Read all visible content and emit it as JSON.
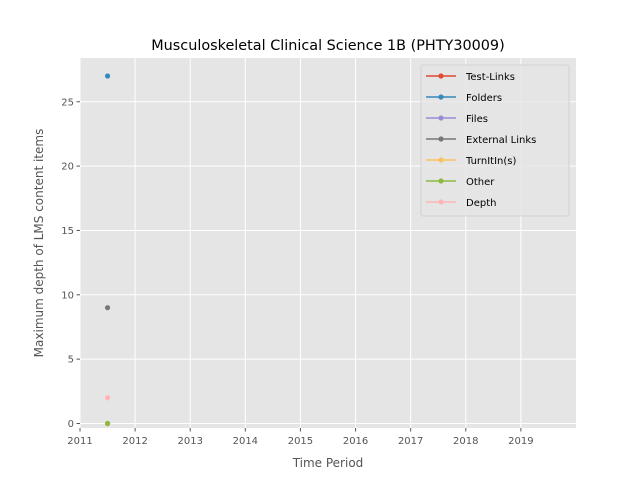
{
  "chart_data": {
    "type": "line",
    "title": "Musculoskeletal Clinical Science 1B (PHTY30009)",
    "xlabel": "Time Period",
    "ylabel": "Maximum depth of LMS content items",
    "xlim": [
      2011,
      2020
    ],
    "ylim": [
      -0.35,
      28.4
    ],
    "xticks": [
      2011,
      2012,
      2013,
      2014,
      2015,
      2016,
      2017,
      2018,
      2019
    ],
    "xtick_labels": [
      "2011",
      "2012",
      "2013",
      "2014",
      "2015",
      "2016",
      "2017",
      "2018",
      "2019"
    ],
    "yticks": [
      0,
      5,
      10,
      15,
      20,
      25
    ],
    "ytick_labels": [
      "0",
      "5",
      "10",
      "15",
      "20",
      "25"
    ],
    "grid": true,
    "legend_position": "top-right",
    "series": [
      {
        "name": "Test-Links",
        "color": "#E24A33",
        "points": [
          [
            2011.5,
            0
          ]
        ]
      },
      {
        "name": "Folders",
        "color": "#348ABD",
        "points": [
          [
            2011.5,
            27
          ]
        ]
      },
      {
        "name": "Files",
        "color": "#988ED5",
        "points": [
          [
            2011.5,
            0
          ]
        ]
      },
      {
        "name": "External Links",
        "color": "#777777",
        "points": [
          [
            2011.5,
            9
          ]
        ]
      },
      {
        "name": "TurnItIn(s)",
        "color": "#FBC15E",
        "points": [
          [
            2011.5,
            0
          ]
        ]
      },
      {
        "name": "Other",
        "color": "#8EBA42",
        "points": [
          [
            2011.5,
            0
          ]
        ]
      },
      {
        "name": "Depth",
        "color": "#FFB5B8",
        "points": [
          [
            2011.5,
            2
          ]
        ]
      }
    ]
  }
}
